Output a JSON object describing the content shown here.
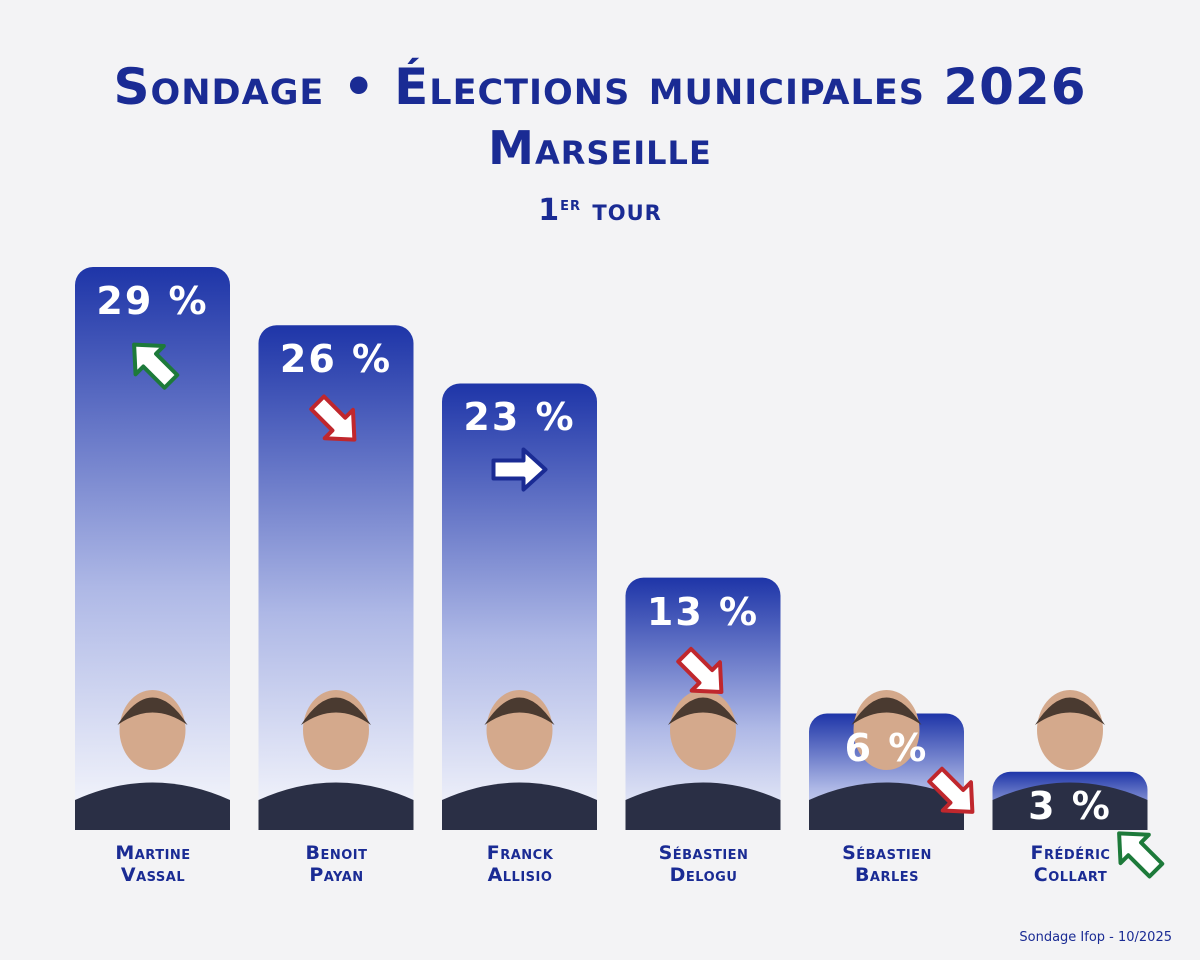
{
  "header": {
    "title": "Sondage • Élections municipales 2026",
    "subtitle": "Marseille",
    "round_number": "1",
    "round_suffix": "er",
    "round_label": "tour"
  },
  "source": "Sondage Ifop - 10/2025",
  "colors": {
    "bar_top": "#1e35a8",
    "bar_bottom": "#ffffff",
    "arrow_up": "#1d7a3a",
    "arrow_down": "#c0272d",
    "arrow_stable": "#1a2b94"
  },
  "chart_data": {
    "type": "bar",
    "categories": [
      "Martine Vassal",
      "Benoit Payan",
      "Franck Allisio",
      "Sébastien Delogu",
      "Sébastien Barles",
      "Frédéric Collart"
    ],
    "values": [
      29,
      26,
      23,
      13,
      6,
      3
    ],
    "value_labels": [
      "29 %",
      "26 %",
      "23 %",
      "13 %",
      "6 %",
      "3 %"
    ],
    "trends": [
      "up",
      "down",
      "stable",
      "down",
      "down",
      "up"
    ],
    "candidates": [
      {
        "first": "Martine",
        "last": "Vassal"
      },
      {
        "first": "Benoit",
        "last": "Payan"
      },
      {
        "first": "Franck",
        "last": "Allisio"
      },
      {
        "first": "Sébastien",
        "last": "Delogu"
      },
      {
        "first": "Sébastien",
        "last": "Barles"
      },
      {
        "first": "Frédéric",
        "last": "Collart"
      }
    ],
    "ylim": [
      0,
      29
    ]
  }
}
